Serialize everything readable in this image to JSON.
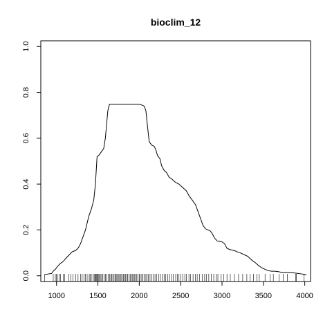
{
  "chart_data": {
    "type": "line",
    "title": "bioclim_12",
    "xlabel": "",
    "ylabel": "",
    "xlim": [
      810,
      4070
    ],
    "ylim": [
      -0.025,
      1.025
    ],
    "x_ticks": [
      1000,
      1500,
      2000,
      2500,
      3000,
      3500,
      4000
    ],
    "x_tick_labels": [
      "1000",
      "1500",
      "2000",
      "2500",
      "3000",
      "3500",
      "4000"
    ],
    "y_ticks": [
      0.0,
      0.2,
      0.4,
      0.6,
      0.8,
      1.0
    ],
    "y_tick_labels": [
      "0.0",
      "0.2",
      "0.4",
      "0.6",
      "0.8",
      "1.0"
    ],
    "grid": false,
    "legend": "none",
    "series": [
      {
        "x": [
          860,
          900,
          940,
          960,
          990,
          1010,
          1050,
          1080,
          1110,
          1150,
          1190,
          1230,
          1260,
          1290,
          1320,
          1350,
          1370,
          1390,
          1420,
          1450,
          1470,
          1490,
          1510,
          1530,
          1550,
          1570,
          1590,
          1620,
          1640,
          1660,
          1690,
          1720,
          1750,
          1800,
          1850,
          1900,
          1950,
          2000,
          2030,
          2060,
          2080,
          2100,
          2120,
          2150,
          2180,
          2200,
          2220,
          2250,
          2270,
          2300,
          2330,
          2360,
          2400,
          2430,
          2450,
          2480,
          2510,
          2540,
          2570,
          2600,
          2640,
          2680,
          2710,
          2740,
          2770,
          2800,
          2830,
          2860,
          2880,
          2910,
          2940,
          2970,
          3000,
          3030,
          3060,
          3090,
          3120,
          3150,
          3180,
          3220,
          3250,
          3280,
          3310,
          3340,
          3370,
          3400,
          3440,
          3480,
          3520,
          3560,
          3600,
          3640,
          3680,
          3720,
          3760,
          3800,
          3840,
          3880,
          3920,
          3960,
          4000,
          4020
        ],
        "y": [
          0.005,
          0.008,
          0.01,
          0.02,
          0.03,
          0.04,
          0.055,
          0.062,
          0.075,
          0.09,
          0.105,
          0.11,
          0.12,
          0.14,
          0.17,
          0.2,
          0.23,
          0.26,
          0.29,
          0.33,
          0.4,
          0.52,
          0.525,
          0.535,
          0.545,
          0.555,
          0.6,
          0.72,
          0.748,
          0.748,
          0.748,
          0.748,
          0.748,
          0.748,
          0.748,
          0.748,
          0.748,
          0.748,
          0.745,
          0.74,
          0.72,
          0.65,
          0.585,
          0.57,
          0.565,
          0.55,
          0.525,
          0.51,
          0.48,
          0.46,
          0.45,
          0.43,
          0.42,
          0.41,
          0.405,
          0.4,
          0.39,
          0.38,
          0.37,
          0.35,
          0.33,
          0.31,
          0.28,
          0.25,
          0.22,
          0.205,
          0.2,
          0.195,
          0.185,
          0.165,
          0.152,
          0.15,
          0.148,
          0.14,
          0.12,
          0.115,
          0.112,
          0.11,
          0.105,
          0.1,
          0.095,
          0.09,
          0.085,
          0.075,
          0.065,
          0.058,
          0.045,
          0.035,
          0.028,
          0.022,
          0.02,
          0.02,
          0.018,
          0.015,
          0.015,
          0.015,
          0.014,
          0.012,
          0.01,
          0.008,
          0.006,
          0.004
        ]
      }
    ],
    "rug": [
      855,
      960,
      985,
      1000,
      1010,
      1030,
      1050,
      1080,
      1100,
      1150,
      1175,
      1200,
      1230,
      1260,
      1290,
      1310,
      1330,
      1350,
      1370,
      1395,
      1405,
      1420,
      1440,
      1455,
      1465,
      1475,
      1485,
      1495,
      1500,
      1505,
      1515,
      1530,
      1545,
      1560,
      1575,
      1590,
      1610,
      1625,
      1640,
      1655,
      1665,
      1680,
      1695,
      1710,
      1720,
      1730,
      1745,
      1755,
      1770,
      1780,
      1795,
      1810,
      1820,
      1835,
      1850,
      1860,
      1875,
      1890,
      1900,
      1915,
      1930,
      1940,
      1955,
      1970,
      1985,
      2000,
      2010,
      2030,
      2045,
      2060,
      2080,
      2095,
      2110,
      2130,
      2150,
      2170,
      2190,
      2210,
      2235,
      2255,
      2280,
      2300,
      2320,
      2345,
      2365,
      2390,
      2410,
      2440,
      2460,
      2480,
      2500,
      2525,
      2550,
      2570,
      2600,
      2620,
      2650,
      2680,
      2700,
      2730,
      2760,
      2790,
      2810,
      2840,
      2870,
      2900,
      2930,
      2950,
      2990,
      3020,
      3060,
      3100,
      3150,
      3200,
      3250,
      3300,
      3340,
      3380,
      3420,
      3450,
      3520,
      3580,
      3620,
      3690,
      3740,
      3790,
      3890,
      3900,
      3990
    ]
  }
}
